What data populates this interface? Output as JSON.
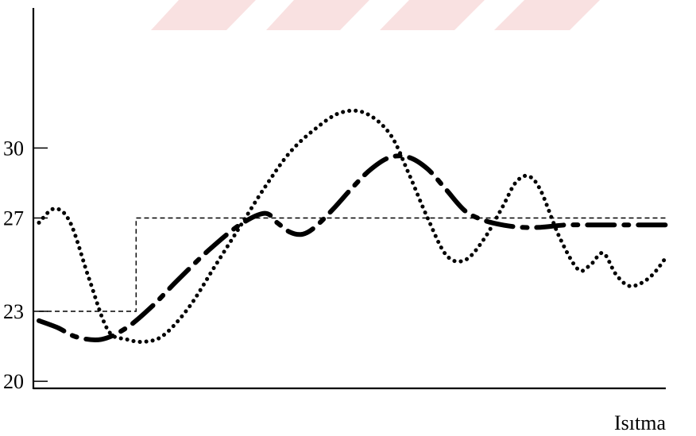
{
  "chart_data": {
    "type": "line",
    "title": "",
    "xlabel": "Isıtma",
    "ylabel": "",
    "ylim": [
      19.7,
      36
    ],
    "xlim": [
      0,
      100
    ],
    "yticks": [
      {
        "value": 20,
        "label": "20"
      },
      {
        "value": 23,
        "label": "23"
      },
      {
        "value": 27,
        "label": "27"
      },
      {
        "value": 30,
        "label": "30"
      }
    ],
    "grid": false,
    "legend": "none",
    "series": [
      {
        "style": "dotted",
        "color": "#000000",
        "x": [
          0,
          2.5,
          5,
          8,
          11,
          14,
          17,
          20,
          24,
          28,
          32,
          36,
          40,
          44,
          48,
          52,
          56,
          59,
          62,
          65,
          68,
          71,
          74,
          76,
          78,
          80,
          83,
          86,
          88,
          90,
          92,
          94,
          96,
          98,
          100
        ],
        "y": [
          26.8,
          27.4,
          26.8,
          24.4,
          22.2,
          21.8,
          21.7,
          22,
          23.2,
          24.9,
          26.6,
          28.3,
          29.8,
          30.8,
          31.5,
          31.5,
          30.6,
          28.9,
          27,
          25.4,
          25.2,
          26.1,
          27.5,
          28.5,
          28.8,
          28.2,
          26.2,
          24.8,
          25,
          25.5,
          24.6,
          24.1,
          24.2,
          24.6,
          25.3
        ]
      },
      {
        "style": "dash-dot",
        "color": "#000000",
        "x": [
          0,
          3,
          6,
          10,
          14,
          18,
          22,
          27,
          32,
          36,
          38,
          40,
          42,
          44,
          47,
          50,
          53,
          56,
          59,
          62,
          65,
          68,
          71,
          74,
          77,
          80,
          84,
          88,
          92,
          96,
          100
        ],
        "y": [
          22.6,
          22.3,
          21.9,
          21.8,
          22.3,
          23.2,
          24.3,
          25.6,
          26.7,
          27.2,
          26.8,
          26.4,
          26.3,
          26.6,
          27.4,
          28.3,
          29.1,
          29.6,
          29.6,
          29.1,
          28.2,
          27.3,
          26.9,
          26.7,
          26.6,
          26.6,
          26.7,
          26.7,
          26.7,
          26.7,
          26.7
        ]
      },
      {
        "style": "dashed-thin",
        "color": "#000000",
        "x": [
          0,
          15.5,
          15.5,
          100
        ],
        "y": [
          23,
          23,
          27,
          27
        ]
      }
    ]
  }
}
